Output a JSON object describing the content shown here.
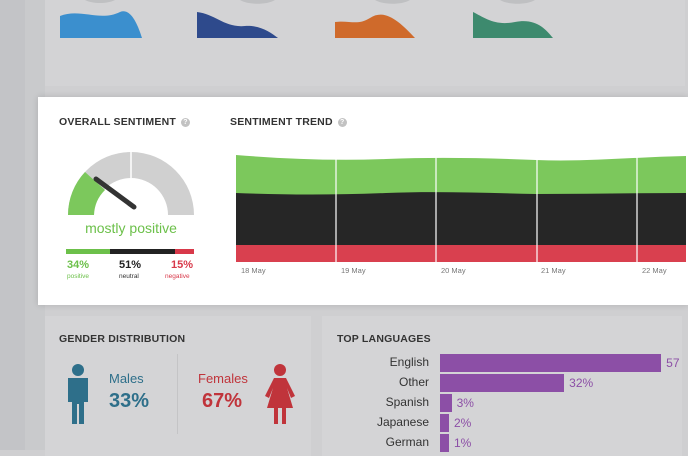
{
  "top_card": {
    "shapes": [
      {
        "name": "blue-wave-shape",
        "color": "#3b8fce"
      },
      {
        "name": "navy-wave-shape",
        "color": "#2e4a8c"
      },
      {
        "name": "orange-wave-shape",
        "color": "#cf6a2b"
      },
      {
        "name": "teal-wave-shape",
        "color": "#3d8a6e"
      }
    ]
  },
  "overall_sentiment": {
    "title": "OVERALL SENTIMENT",
    "summary": "mostly positive",
    "gauge_value": 0.34,
    "positive": {
      "value": "34%",
      "label": "positive",
      "color": "#6cc04a"
    },
    "neutral": {
      "value": "51%",
      "label": "neutral",
      "color": "#222222"
    },
    "negative": {
      "value": "15%",
      "label": "negative",
      "color": "#d8394a"
    }
  },
  "sentiment_trend": {
    "title": "SENTIMENT TREND",
    "dates": [
      "18 May",
      "19 May",
      "20 May",
      "21 May",
      "22 May"
    ],
    "colors": {
      "positive": "#7cc85c",
      "neutral": "#262626",
      "negative": "#d9404f"
    }
  },
  "gender_distribution": {
    "title": "GENDER DISTRIBUTION",
    "males": {
      "label": "Males",
      "value": "33%",
      "color": "#2e6f8a"
    },
    "females": {
      "label": "Females",
      "value": "67%",
      "color": "#c0343b"
    }
  },
  "top_languages": {
    "title": "TOP LANGUAGES",
    "bar_color": "#8c4fa6",
    "items": [
      {
        "name": "English",
        "value": "57",
        "fraction": 0.57
      },
      {
        "name": "Other",
        "value": "32%",
        "fraction": 0.32
      },
      {
        "name": "Spanish",
        "value": "3%",
        "fraction": 0.03
      },
      {
        "name": "Japanese",
        "value": "2%",
        "fraction": 0.02
      },
      {
        "name": "German",
        "value": "1%",
        "fraction": 0.01
      }
    ]
  }
}
